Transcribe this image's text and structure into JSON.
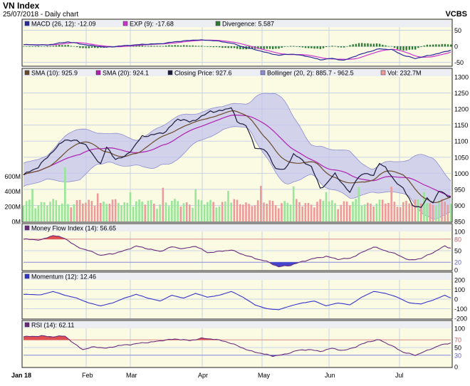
{
  "header": {
    "title": "VN Index",
    "subtitle": "25/07/2018 - Daily chart",
    "brand": "VCBS"
  },
  "colors": {
    "panel_bg": "#fbfbe4",
    "legend_bg": "#eceef4",
    "grid": "#c9d3e3",
    "frame": "#222222",
    "macd": "#2a2a9a",
    "signal": "#cc33cc",
    "divergence": "#2e7d32",
    "sma10": "#6b4a2a",
    "sma20": "#b020b0",
    "close": "#1a1a3a",
    "bollinger_fill": "#c4c4ee",
    "bollinger_line": "#8d8dd0",
    "vol_up": "#99e699",
    "vol_down": "#ee9a9a",
    "mfi": "#6a2a7a",
    "momentum": "#3333cc",
    "rsi": "#6a2a7a",
    "overbought_fill": "#e05050",
    "oversold_fill": "#4444cc",
    "ref_line": "#d98888",
    "ref_line_low": "#8888d9"
  },
  "x_axis": {
    "months": [
      "Jan 18",
      "Feb",
      "Mar",
      "Apr",
      "May",
      "Jun",
      "Jul"
    ]
  },
  "panels": {
    "macd": {
      "legend": [
        {
          "label": "MACD (26, 12): -12.09",
          "swatch": "#2a2a9a"
        },
        {
          "label": "EXP (9): -17.68",
          "swatch": "#cc33cc"
        },
        {
          "label": "Divergence: 5.587",
          "swatch": "#2e7d32"
        }
      ],
      "axis_labels": [
        "50",
        "0",
        "-50"
      ]
    },
    "price": {
      "legend": [
        {
          "label": "SMA (10): 925.9",
          "swatch": "#6b4a2a"
        },
        {
          "label": "SMA (20): 924.1",
          "swatch": "#b020b0"
        },
        {
          "label": "Closing Price: 927.6",
          "swatch": "#1a1a3a"
        },
        {
          "label": "Bollinger (20, 2): 885.7 - 962.5",
          "swatch": "#8d8dd0"
        },
        {
          "label": "Vol: 232.7M",
          "swatch": "#ee9a9a"
        }
      ],
      "right_axis": [
        "1300",
        "1250",
        "1200",
        "1150",
        "1100",
        "1050",
        "1000",
        "950",
        "900",
        "850"
      ],
      "left_axis": [
        "600M",
        "400M",
        "200M",
        "0M"
      ]
    },
    "mfi": {
      "legend": [
        {
          "label": "Money Flow Index (14): 56.65",
          "swatch": "#6a2a7a"
        }
      ],
      "axis_labels": [
        "100",
        "80",
        "50",
        "20",
        "0"
      ]
    },
    "momentum": {
      "legend": [
        {
          "label": "Momentum (12): 12.46",
          "swatch": "#3333cc"
        }
      ],
      "axis_labels": [
        "200",
        "100",
        "0",
        "-100",
        "-200"
      ]
    },
    "rsi": {
      "legend": [
        {
          "label": "RSI (14): 62.11",
          "swatch": "#6a2a7a"
        }
      ],
      "axis_labels": [
        "100",
        "70",
        "50",
        "30",
        "0"
      ]
    }
  },
  "chart_data": {
    "type": "line",
    "trading_days": 145,
    "months": [
      "Jan 18",
      "Feb",
      "Mar",
      "Apr",
      "May",
      "Jun",
      "Jul"
    ],
    "price": {
      "ylim": [
        850,
        1300
      ],
      "close_keyframes": [
        [
          0,
          995
        ],
        [
          5,
          1020
        ],
        [
          10,
          1070
        ],
        [
          14,
          1105
        ],
        [
          18,
          1100
        ],
        [
          21,
          1090
        ],
        [
          23,
          1060
        ],
        [
          26,
          1030
        ],
        [
          28,
          1080
        ],
        [
          31,
          1045
        ],
        [
          34,
          1050
        ],
        [
          37,
          1080
        ],
        [
          40,
          1115
        ],
        [
          44,
          1120
        ],
        [
          48,
          1130
        ],
        [
          52,
          1170
        ],
        [
          56,
          1160
        ],
        [
          60,
          1175
        ],
        [
          63,
          1195
        ],
        [
          65,
          1190
        ],
        [
          68,
          1200
        ],
        [
          70,
          1205
        ],
        [
          72,
          1160
        ],
        [
          75,
          1150
        ],
        [
          78,
          1080
        ],
        [
          81,
          1075
        ],
        [
          83,
          1050
        ],
        [
          85,
          1015
        ],
        [
          88,
          1010
        ],
        [
          91,
          1060
        ],
        [
          94,
          1040
        ],
        [
          97,
          1020
        ],
        [
          100,
          955
        ],
        [
          102,
          965
        ],
        [
          105,
          1000
        ],
        [
          108,
          960
        ],
        [
          110,
          940
        ],
        [
          112,
          980
        ],
        [
          115,
          1000
        ],
        [
          118,
          995
        ],
        [
          120,
          1030
        ],
        [
          122,
          1020
        ],
        [
          125,
          975
        ],
        [
          128,
          955
        ],
        [
          131,
          900
        ],
        [
          134,
          895
        ],
        [
          136,
          920
        ],
        [
          138,
          910
        ],
        [
          140,
          945
        ],
        [
          143,
          930
        ],
        [
          144,
          927.6
        ]
      ],
      "sma10_last": 925.9,
      "sma20_last": 924.1,
      "bollinger_last": [
        885.7,
        962.5
      ]
    },
    "volume": {
      "ylim": [
        0,
        800
      ],
      "unit": "M",
      "last": 232.7
    },
    "macd": {
      "ylim": [
        -60,
        60
      ],
      "keyframes": [
        [
          0,
          5
        ],
        [
          8,
          4
        ],
        [
          15,
          14
        ],
        [
          22,
          3
        ],
        [
          28,
          -3
        ],
        [
          34,
          2
        ],
        [
          40,
          6
        ],
        [
          46,
          8
        ],
        [
          52,
          15
        ],
        [
          58,
          20
        ],
        [
          64,
          18
        ],
        [
          70,
          10
        ],
        [
          74,
          -2
        ],
        [
          78,
          -10
        ],
        [
          82,
          -20
        ],
        [
          86,
          -28
        ],
        [
          90,
          -24
        ],
        [
          95,
          -30
        ],
        [
          100,
          -42
        ],
        [
          104,
          -38
        ],
        [
          108,
          -44
        ],
        [
          112,
          -30
        ],
        [
          116,
          -18
        ],
        [
          120,
          -8
        ],
        [
          124,
          -10
        ],
        [
          128,
          -28
        ],
        [
          132,
          -38
        ],
        [
          136,
          -30
        ],
        [
          140,
          -22
        ],
        [
          144,
          -12.09
        ]
      ],
      "signal_last": -17.68,
      "divergence_last": 5.587
    },
    "mfi": {
      "ylim": [
        0,
        100
      ],
      "levels": [
        80,
        20
      ],
      "keyframes": [
        [
          0,
          80
        ],
        [
          6,
          78
        ],
        [
          10,
          90
        ],
        [
          14,
          82
        ],
        [
          18,
          60
        ],
        [
          22,
          50
        ],
        [
          26,
          38
        ],
        [
          30,
          42
        ],
        [
          34,
          50
        ],
        [
          38,
          62
        ],
        [
          42,
          55
        ],
        [
          46,
          48
        ],
        [
          50,
          60
        ],
        [
          54,
          55
        ],
        [
          58,
          62
        ],
        [
          62,
          45
        ],
        [
          66,
          48
        ],
        [
          70,
          52
        ],
        [
          74,
          40
        ],
        [
          78,
          30
        ],
        [
          82,
          22
        ],
        [
          86,
          8
        ],
        [
          90,
          12
        ],
        [
          94,
          22
        ],
        [
          98,
          30
        ],
        [
          102,
          35
        ],
        [
          106,
          28
        ],
        [
          110,
          30
        ],
        [
          114,
          45
        ],
        [
          118,
          60
        ],
        [
          122,
          50
        ],
        [
          126,
          40
        ],
        [
          130,
          25
        ],
        [
          134,
          30
        ],
        [
          138,
          45
        ],
        [
          142,
          62
        ],
        [
          144,
          56.65
        ]
      ]
    },
    "momentum": {
      "ylim": [
        -200,
        200
      ],
      "keyframes": [
        [
          0,
          50
        ],
        [
          6,
          45
        ],
        [
          10,
          80
        ],
        [
          14,
          40
        ],
        [
          18,
          10
        ],
        [
          22,
          -40
        ],
        [
          26,
          -70
        ],
        [
          30,
          -40
        ],
        [
          34,
          10
        ],
        [
          38,
          50
        ],
        [
          42,
          10
        ],
        [
          46,
          -20
        ],
        [
          50,
          40
        ],
        [
          54,
          10
        ],
        [
          58,
          60
        ],
        [
          62,
          20
        ],
        [
          66,
          40
        ],
        [
          70,
          80
        ],
        [
          74,
          20
        ],
        [
          78,
          -60
        ],
        [
          82,
          -100
        ],
        [
          86,
          -110
        ],
        [
          90,
          -70
        ],
        [
          94,
          -40
        ],
        [
          98,
          -20
        ],
        [
          102,
          -70
        ],
        [
          106,
          -40
        ],
        [
          110,
          -60
        ],
        [
          114,
          20
        ],
        [
          118,
          80
        ],
        [
          122,
          60
        ],
        [
          126,
          20
        ],
        [
          130,
          -40
        ],
        [
          134,
          -50
        ],
        [
          138,
          -10
        ],
        [
          142,
          40
        ],
        [
          144,
          12.46
        ]
      ]
    },
    "rsi": {
      "ylim": [
        0,
        100
      ],
      "levels": [
        70,
        30
      ],
      "keyframes": [
        [
          0,
          78
        ],
        [
          6,
          80
        ],
        [
          10,
          78
        ],
        [
          14,
          80
        ],
        [
          17,
          60
        ],
        [
          20,
          45
        ],
        [
          24,
          52
        ],
        [
          28,
          48
        ],
        [
          32,
          55
        ],
        [
          36,
          58
        ],
        [
          40,
          62
        ],
        [
          44,
          65
        ],
        [
          48,
          70
        ],
        [
          52,
          72
        ],
        [
          56,
          68
        ],
        [
          60,
          74
        ],
        [
          64,
          72
        ],
        [
          68,
          66
        ],
        [
          72,
          55
        ],
        [
          76,
          42
        ],
        [
          80,
          35
        ],
        [
          84,
          28
        ],
        [
          88,
          32
        ],
        [
          92,
          42
        ],
        [
          96,
          45
        ],
        [
          100,
          40
        ],
        [
          104,
          48
        ],
        [
          108,
          42
        ],
        [
          112,
          52
        ],
        [
          116,
          65
        ],
        [
          120,
          70
        ],
        [
          124,
          55
        ],
        [
          128,
          38
        ],
        [
          132,
          30
        ],
        [
          136,
          42
        ],
        [
          140,
          55
        ],
        [
          144,
          62.11
        ]
      ]
    }
  }
}
